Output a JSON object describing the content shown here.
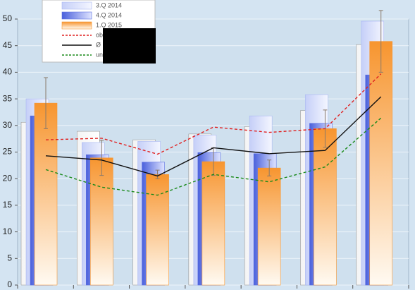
{
  "chart_data": {
    "type": "bar",
    "categories": [
      null,
      null,
      null,
      null,
      null,
      null,
      null
    ],
    "series": [
      {
        "name": null,
        "color": "#ffffff",
        "values": [
          30.6,
          28.9,
          27.3,
          28.4,
          29.8,
          32.8,
          45.2
        ]
      },
      {
        "name": "3.Q 2014",
        "color": "#aab8f2",
        "values": [
          35.0,
          26.8,
          27.0,
          28.2,
          31.8,
          35.8,
          49.6
        ]
      },
      {
        "name": "4.Q 2014",
        "color": "#5b6fe0",
        "values": [
          31.8,
          24.5,
          23.1,
          24.9,
          24.7,
          30.4,
          39.5
        ]
      },
      {
        "name": "1.Q 2015",
        "color": "#f7952f",
        "values": [
          34.2,
          23.9,
          20.8,
          23.2,
          22.0,
          29.4,
          45.8
        ],
        "errors": [
          4.8,
          3.3,
          0.8,
          2.6,
          1.5,
          3.5,
          5.8
        ]
      },
      {
        "name": "ob",
        "type": "line",
        "dash": true,
        "color": "#e02020",
        "values": [
          27.3,
          27.6,
          24.6,
          29.7,
          28.7,
          29.4,
          39.7
        ]
      },
      {
        "name": "Ø",
        "type": "line",
        "dash": false,
        "color": "#111111",
        "values": [
          24.3,
          23.5,
          20.5,
          25.8,
          24.7,
          25.3,
          35.4
        ]
      },
      {
        "name": "un",
        "type": "line",
        "dash": true,
        "color": "#1a8a1a",
        "values": [
          21.7,
          18.4,
          16.9,
          20.8,
          19.4,
          22.2,
          31.4
        ]
      }
    ],
    "ylim": [
      0,
      50
    ],
    "yticks": [
      0,
      5,
      10,
      15,
      20,
      25,
      30,
      35,
      40,
      45,
      50
    ],
    "grid": true
  }
}
